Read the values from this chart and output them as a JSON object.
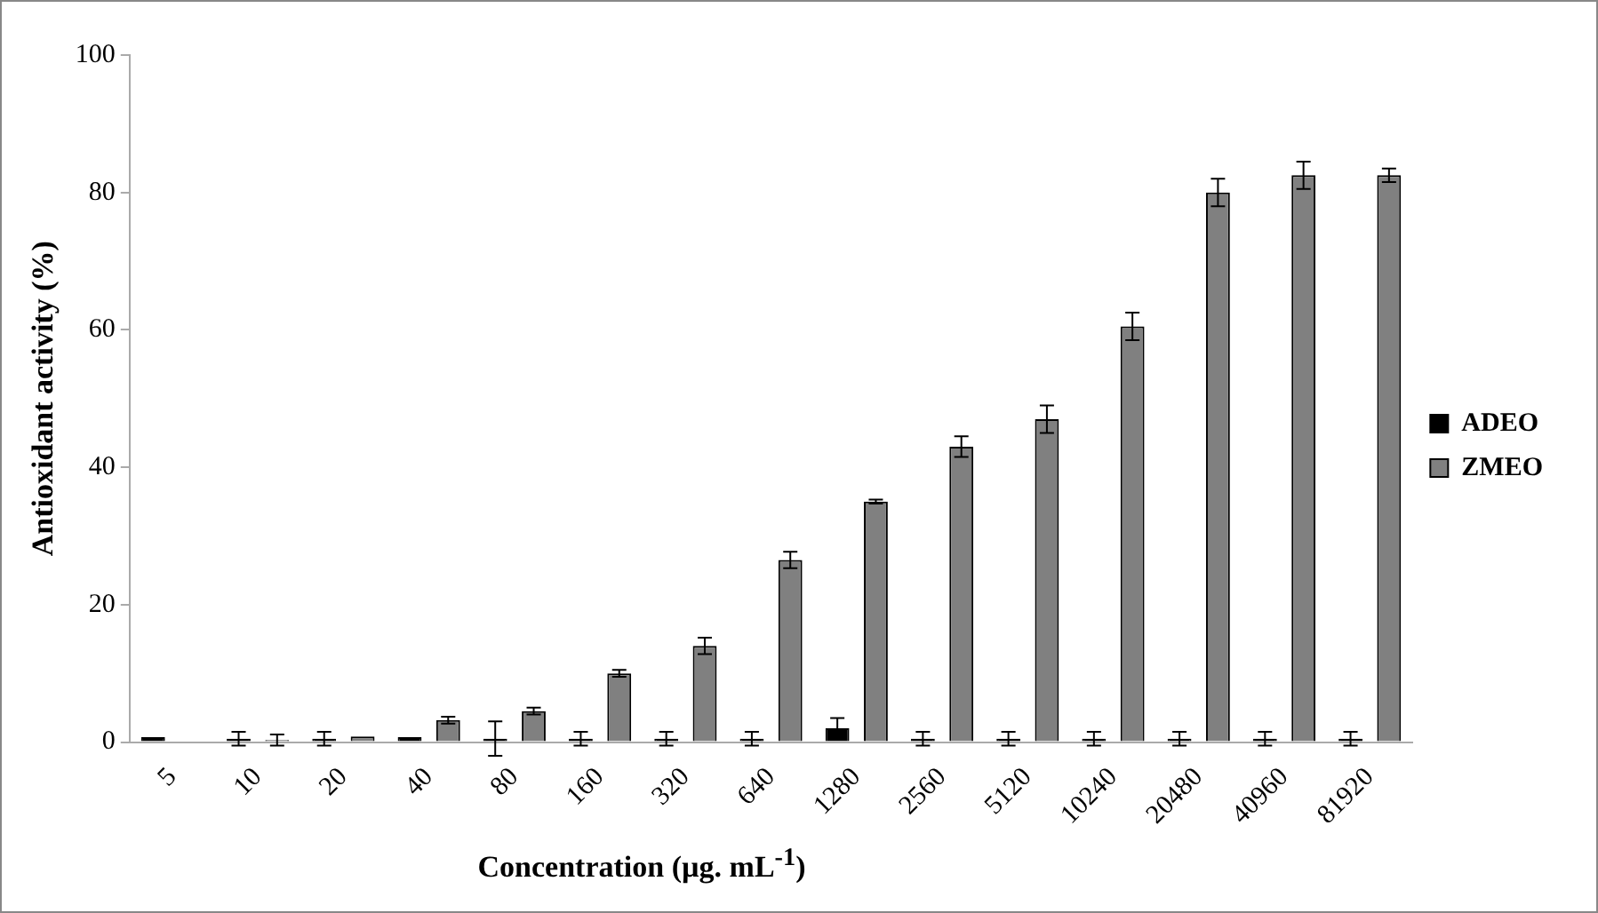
{
  "chart_data": {
    "type": "bar",
    "xlabel": "Concentration (µg. mL$^{-1}$)",
    "ylabel": "Antioxidant activity (%)",
    "categories": [
      "5",
      "10",
      "20",
      "40",
      "80",
      "160",
      "320",
      "640",
      "1280",
      "2560",
      "5120",
      "10240",
      "20480",
      "40960",
      "81920"
    ],
    "series": [
      {
        "name": "ADEO",
        "color": "#000000",
        "values": [
          0.7,
          0.5,
          0.5,
          0.7,
          0.5,
          0.5,
          0.5,
          0.5,
          2,
          0.5,
          0.5,
          0.5,
          0.5,
          0.5,
          0.5
        ],
        "errors": [
          null,
          1,
          1,
          null,
          2.5,
          1,
          1,
          1,
          1.5,
          1,
          1,
          1,
          1,
          1,
          1
        ]
      },
      {
        "name": "ZMEO",
        "color": "#808080",
        "values": [
          0,
          0.3,
          0.8,
          3.2,
          4.5,
          10,
          14,
          26.5,
          35,
          43,
          47,
          60.5,
          80,
          82.5,
          82.5
        ],
        "errors": [
          null,
          0.8,
          null,
          0.5,
          0.5,
          0.5,
          1.2,
          1.2,
          0.3,
          1.5,
          2,
          2,
          2,
          2,
          1
        ]
      }
    ],
    "ylim": [
      0,
      100
    ],
    "yticks": [
      0,
      20,
      40,
      60,
      80,
      100
    ],
    "grid": false,
    "legend": "right"
  }
}
